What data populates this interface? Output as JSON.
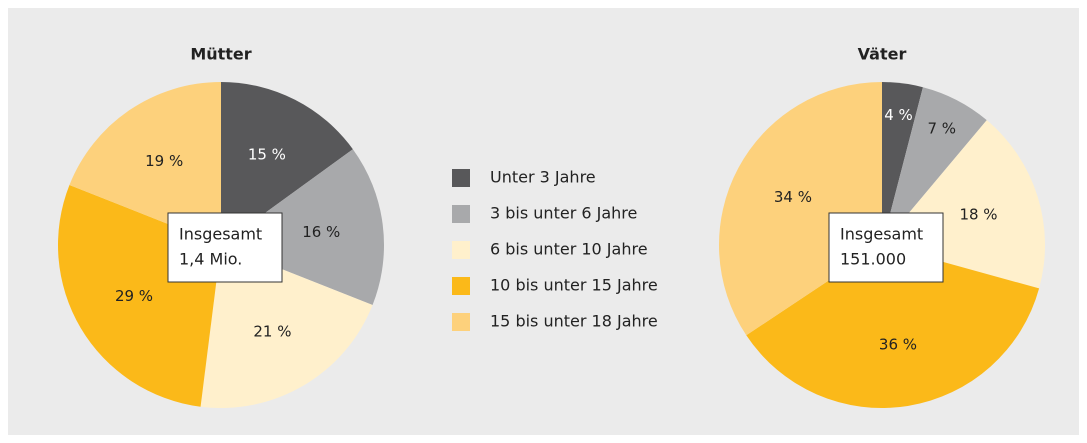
{
  "legend": {
    "categories": [
      "Unter 3 Jahre",
      "3 bis unter 6 Jahre",
      "6 bis unter 10 Jahre",
      "10 bis unter 15 Jahre",
      "15 bis unter 18 Jahre"
    ],
    "colors": [
      "#58585a",
      "#a8a9ab",
      "#fff0cc",
      "#fbb919",
      "#fdd17c"
    ]
  },
  "chart_data": [
    {
      "type": "pie",
      "title": "Mütter",
      "values": [
        15,
        16,
        21,
        29,
        19
      ],
      "value_labels": [
        "15 %",
        "16 %",
        "21 %",
        "29 %",
        "19 %"
      ],
      "annotation": [
        "Insgesamt",
        "1,4 Mio."
      ]
    },
    {
      "type": "pie",
      "title": "Väter",
      "values": [
        4,
        7,
        18,
        36,
        34
      ],
      "value_labels": [
        "4 %",
        "7 %",
        "18 %",
        "36 %",
        "34 %"
      ],
      "annotation": [
        "Insgesamt",
        "151.000"
      ]
    }
  ]
}
